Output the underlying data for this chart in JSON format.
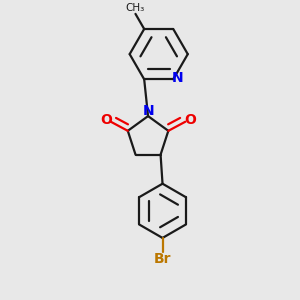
{
  "bg_color": "#e8e8e8",
  "bond_color": "#1a1a1a",
  "N_color": "#0000ee",
  "O_color": "#ee0000",
  "Br_color": "#bb7700",
  "bond_width": 1.6,
  "dbo": 0.06,
  "figsize": [
    3.0,
    3.0
  ],
  "dpi": 100,
  "xlim": [
    -0.3,
    1.1
  ],
  "ylim": [
    -1.55,
    1.45
  ]
}
